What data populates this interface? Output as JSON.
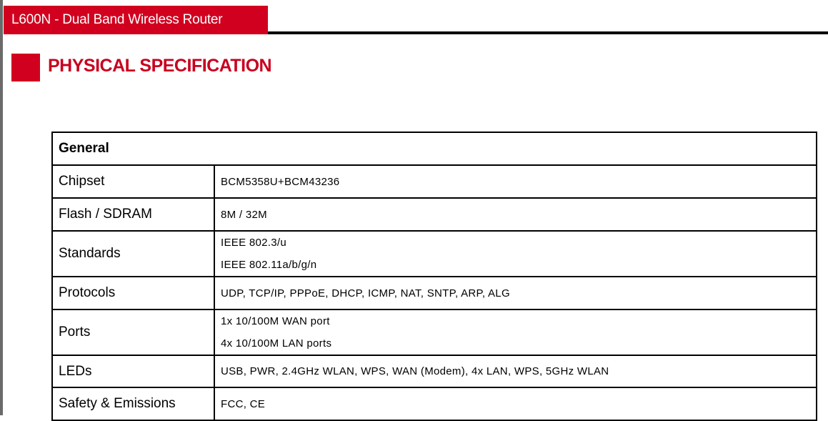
{
  "header": {
    "title": "L600N - Dual Band Wireless Router"
  },
  "section": {
    "title": "PHYSICAL SPECIFICATION"
  },
  "colors": {
    "accent": "#d1001f",
    "rule": "#000000"
  },
  "table": {
    "group": "General",
    "rows": [
      {
        "label": "Chipset",
        "values": [
          "BCM5358U+BCM43236"
        ]
      },
      {
        "label": "Flash / SDRAM",
        "values": [
          "8M / 32M"
        ]
      },
      {
        "label": "Standards",
        "values": [
          "IEEE 802.3/u",
          "IEEE 802.11a/b/g/n"
        ]
      },
      {
        "label": "Protocols",
        "values": [
          "UDP, TCP/IP, PPPoE, DHCP, ICMP, NAT, SNTP, ARP, ALG"
        ]
      },
      {
        "label": "Ports",
        "values": [
          "1x 10/100M WAN port",
          "4x 10/100M LAN ports"
        ]
      },
      {
        "label": "LEDs",
        "values": [
          "USB, PWR, 2.4GHz WLAN, WPS, WAN (Modem), 4x LAN, WPS, 5GHz WLAN"
        ]
      },
      {
        "label": "Safety & Emissions",
        "values": [
          "FCC, CE"
        ]
      }
    ]
  }
}
